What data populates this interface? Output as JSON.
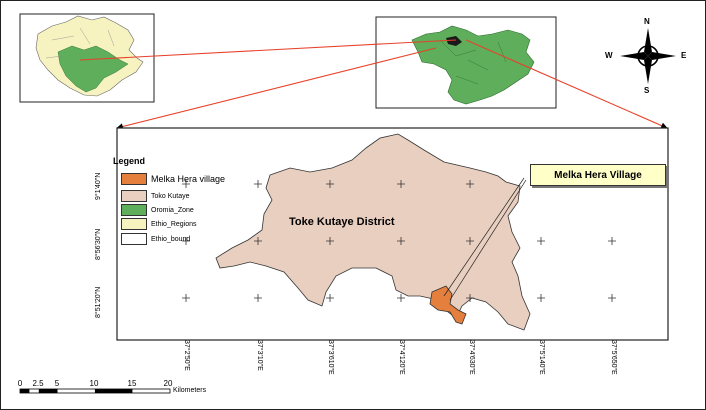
{
  "map": {
    "callout_label": "Melka Hera Village",
    "district_label": "Toke Kutaye District",
    "legend": {
      "title": "Legend",
      "items": [
        {
          "label": "Melka Hera village",
          "color": "#e47f3e"
        },
        {
          "label": "Toko Kutaye",
          "color": "#e9cfc0"
        },
        {
          "label": "Oromia_Zone",
          "color": "#5eae5c"
        },
        {
          "label": "Ethio_Regions",
          "color": "#f6f3c0"
        },
        {
          "label": "Ethio_bound",
          "color": "#ffffff"
        }
      ]
    },
    "lat_ticks": [
      "9°1'40\"N",
      "8°56'30\"N",
      "8°51'20\"N"
    ],
    "lon_ticks": [
      "37°2'50\"E",
      "37°3'10\"E",
      "37°3'610\"E",
      "37°4'120\"E",
      "37°4'630\"E",
      "37°5'140\"E",
      "37°5'650\"E"
    ],
    "scale_bar": {
      "numbers": [
        "0",
        "2.5",
        "5",
        "10",
        "15",
        "20"
      ],
      "unit": "Kilometers"
    },
    "compass": {
      "n": "N",
      "s": "S",
      "e": "E",
      "w": "W"
    },
    "colors": {
      "district_fill": "#e9cfc0",
      "village_fill": "#e47f3e",
      "oromia_fill": "#5eae5c",
      "regions_fill": "#f6f3c0",
      "connector": "#e8412a",
      "callout_bg": "#ffffc8"
    }
  }
}
